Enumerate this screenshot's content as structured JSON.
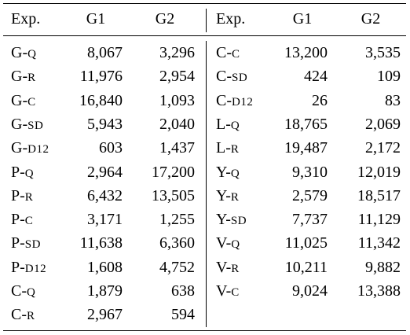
{
  "header": {
    "left": [
      "Exp.",
      "G1",
      "G2"
    ],
    "right": [
      "Exp.",
      "G1",
      "G2"
    ]
  },
  "left_rows": [
    {
      "exp": "G-q",
      "g1": "8,067",
      "g2": "3,296"
    },
    {
      "exp": "G-r",
      "g1": "11,976",
      "g2": "2,954"
    },
    {
      "exp": "G-c",
      "g1": "16,840",
      "g2": "1,093"
    },
    {
      "exp": "G-sd",
      "g1": "5,943",
      "g2": "2,040"
    },
    {
      "exp": "G-d12",
      "g1": "603",
      "g2": "1,437"
    },
    {
      "exp": "P-q",
      "g1": "2,964",
      "g2": "17,200"
    },
    {
      "exp": "P-r",
      "g1": "6,432",
      "g2": "13,505"
    },
    {
      "exp": "P-c",
      "g1": "3,171",
      "g2": "1,255"
    },
    {
      "exp": "P-sd",
      "g1": "11,638",
      "g2": "6,360"
    },
    {
      "exp": "P-d12",
      "g1": "1,608",
      "g2": "4,752"
    },
    {
      "exp": "C-q",
      "g1": "1,879",
      "g2": "638"
    },
    {
      "exp": "C-r",
      "g1": "2,967",
      "g2": "594"
    }
  ],
  "right_rows": [
    {
      "exp": "C-c",
      "g1": "13,200",
      "g2": "3,535"
    },
    {
      "exp": "C-sd",
      "g1": "424",
      "g2": "109"
    },
    {
      "exp": "C-d12",
      "g1": "26",
      "g2": "83"
    },
    {
      "exp": "L-q",
      "g1": "18,765",
      "g2": "2,069"
    },
    {
      "exp": "L-r",
      "g1": "19,487",
      "g2": "2,172"
    },
    {
      "exp": "Y-q",
      "g1": "9,310",
      "g2": "12,019"
    },
    {
      "exp": "Y-r",
      "g1": "2,579",
      "g2": "18,517"
    },
    {
      "exp": "Y-sd",
      "g1": "7,737",
      "g2": "11,129"
    },
    {
      "exp": "V-q",
      "g1": "11,025",
      "g2": "11,342"
    },
    {
      "exp": "V-r",
      "g1": "10,211",
      "g2": "9,882"
    },
    {
      "exp": "V-c",
      "g1": "9,024",
      "g2": "13,388"
    }
  ]
}
